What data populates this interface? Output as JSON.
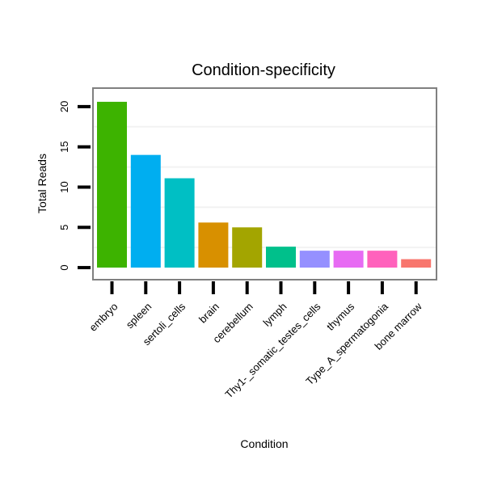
{
  "chart_data": {
    "type": "bar",
    "title": "Condition-specificity",
    "xlabel": "Condition",
    "ylabel": "Total Reads",
    "categories": [
      "embryo",
      "spleen",
      "sertoli_cells",
      "brain",
      "cerebellum",
      "lymph",
      "Thy1-_somatic_testes_cells",
      "thymus",
      "Type_A_spermatogonia",
      "bone marrow"
    ],
    "values": [
      20.6,
      14,
      11.1,
      5.6,
      5,
      2.6,
      2.1,
      2.1,
      2.1,
      1.05
    ],
    "colors": [
      "#3db300",
      "#00aef0",
      "#00bfc4",
      "#d89000",
      "#a3a500",
      "#00c08b",
      "#9590ff",
      "#e76bf3",
      "#ff62bc",
      "#f8766d"
    ],
    "yticks": [
      0,
      5,
      10,
      15,
      20
    ],
    "ylim": [
      -1.5,
      22.3
    ],
    "grid": true
  }
}
